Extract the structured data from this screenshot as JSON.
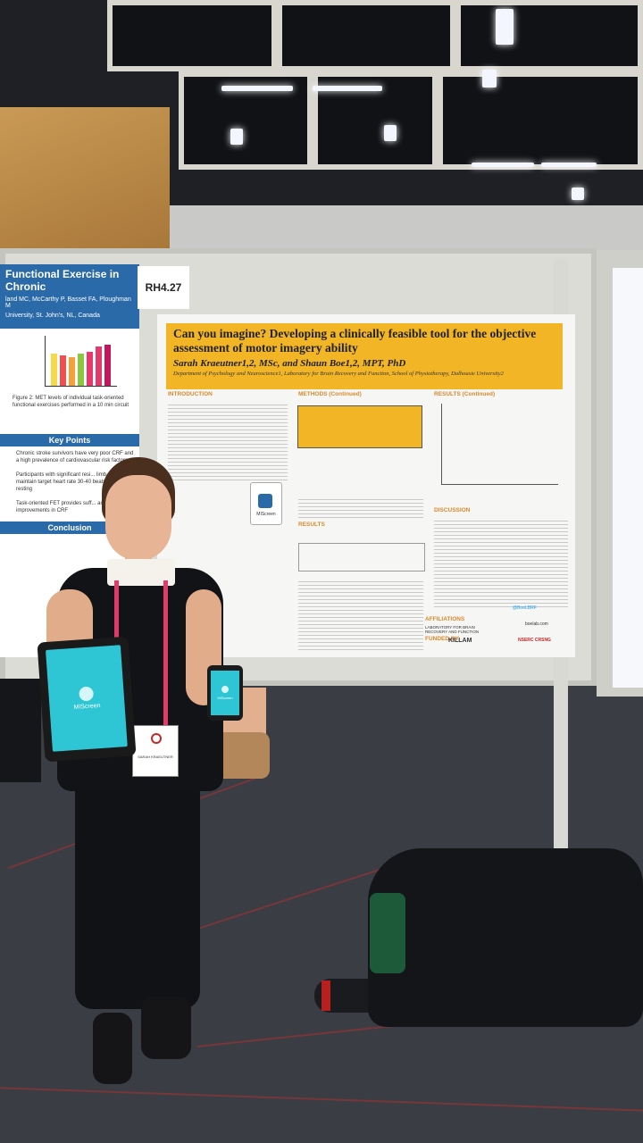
{
  "scene": {
    "description_label": "Conference poster session photo"
  },
  "poster_left": {
    "title": "Functional Exercise in Chronic",
    "authors": "land MC, McCarthy P, Basset FA, Ploughman M",
    "affiliation": "University, St. John's, NL, Canada",
    "key_points_header": "Key Points",
    "key_points": [
      "Chronic stroke survivors have very poor CRF and a high prevalence of cardiovascular risk factors",
      "Participants with significant resi... limb... able to maintain target heart rate 30-40 beats above resting",
      "Task-oriented FET provides suff... achieve improvements in CRF"
    ],
    "conclusion_header": "Conclusion",
    "figure_caption": "Figure 2: MET levels of individual task-oriented functional exercises performed in a 10 min circuit"
  },
  "board_number": "RH4.27",
  "poster_main": {
    "title": "Can you imagine? Developing a clinically feasible tool for the objective assessment of motor imagery ability",
    "authors": "Sarah Kraeutner1,2, MSc, and Shaun Boe1,2, MPT, PhD",
    "departments": "Department of Psychology and Neuroscience1, Laboratory for Brain Recovery and Function, School of Physiotherapy, Dalhousie University2",
    "sections": {
      "introduction": "INTRODUCTION",
      "methods": "METHODS (Continued)",
      "results_cont": "RESULTS (Continued)",
      "results": "RESULTS",
      "discussion": "DISCUSSION",
      "affiliations": "AFFILIATIONS",
      "funded_by": "FUNDED BY"
    },
    "app_label": "MIScreen",
    "twitter": "@BoeLBRF",
    "website": "boelab.com",
    "lab_name": "LABORATORY FOR BRAIN RECOVERY AND FUNCTION",
    "funder_1": "KILLAM",
    "funder_2": "NSERC CRSNG"
  },
  "devices": {
    "tablet_app_name": "MIScreen",
    "phone_app_name": "MIScreen"
  },
  "name_badge": {
    "name": "SARAH KRAEUTNER"
  },
  "colors": {
    "poster_title_bg": "#f2b526",
    "left_poster_header": "#2a6aa8",
    "lanyard": "#e23b69",
    "app_screen": "#2ec6d4"
  }
}
